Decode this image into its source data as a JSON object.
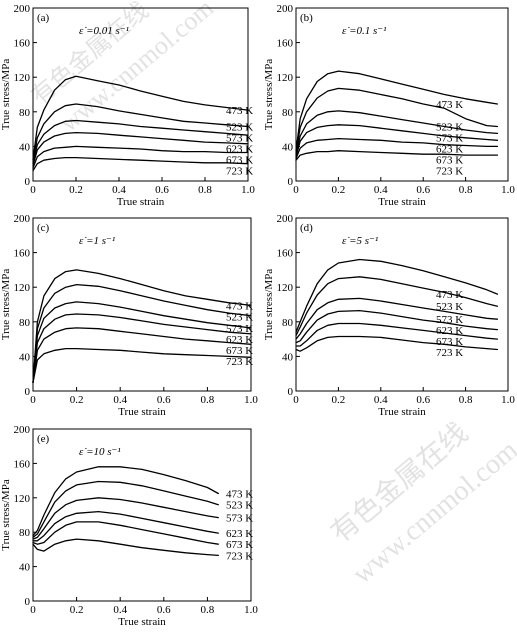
{
  "watermark": {
    "cn": "有色金属在线",
    "url": "www.cnnmol.com"
  },
  "chart_data": [
    {
      "type": "line",
      "panel_label": "(a)",
      "rate_label": "ε̇ =0.01 s⁻¹",
      "xlabel": "True strain",
      "ylabel": "True stress/MPa",
      "xlim": [
        0,
        1.0
      ],
      "ylim": [
        0,
        200
      ],
      "xticks": [
        "0",
        "0.2",
        "0.4",
        "0.6",
        "0.8",
        "1.0"
      ],
      "yticks": [
        "0",
        "40",
        "80",
        "120",
        "160",
        "200"
      ],
      "grid": false,
      "series": [
        {
          "name": "473 K",
          "x": [
            0,
            0.02,
            0.05,
            0.1,
            0.15,
            0.2,
            0.3,
            0.4,
            0.5,
            0.6,
            0.7,
            0.8,
            0.9,
            1.0
          ],
          "y": [
            25,
            62,
            82,
            105,
            117,
            121,
            116,
            111,
            104,
            98,
            92,
            88,
            85,
            82
          ]
        },
        {
          "name": "523 K",
          "x": [
            0,
            0.02,
            0.05,
            0.1,
            0.15,
            0.2,
            0.3,
            0.4,
            0.5,
            0.6,
            0.7,
            0.8,
            0.9,
            1.0
          ],
          "y": [
            22,
            50,
            66,
            80,
            87,
            89,
            86,
            81,
            77,
            73,
            69,
            67,
            65,
            63
          ]
        },
        {
          "name": "573 K",
          "x": [
            0,
            0.02,
            0.05,
            0.1,
            0.15,
            0.2,
            0.3,
            0.4,
            0.5,
            0.6,
            0.7,
            0.8,
            0.9,
            1.0
          ],
          "y": [
            20,
            42,
            54,
            64,
            69,
            70,
            68,
            66,
            63,
            61,
            59,
            57,
            55,
            53
          ]
        },
        {
          "name": "623 K",
          "x": [
            0,
            0.02,
            0.05,
            0.1,
            0.15,
            0.2,
            0.3,
            0.4,
            0.5,
            0.6,
            0.7,
            0.8,
            0.9,
            1.0
          ],
          "y": [
            18,
            36,
            45,
            52,
            55,
            56,
            55,
            53,
            51,
            49,
            47,
            45,
            44,
            43
          ]
        },
        {
          "name": "673 K",
          "x": [
            0,
            0.02,
            0.05,
            0.1,
            0.15,
            0.2,
            0.3,
            0.4,
            0.5,
            0.6,
            0.7,
            0.8,
            0.9,
            1.0
          ],
          "y": [
            15,
            28,
            34,
            38,
            39,
            40,
            39,
            38,
            37,
            35,
            34,
            34,
            33,
            33
          ]
        },
        {
          "name": "723 K",
          "x": [
            0,
            0.02,
            0.05,
            0.1,
            0.15,
            0.2,
            0.3,
            0.4,
            0.5,
            0.6,
            0.7,
            0.8,
            0.9,
            1.0
          ],
          "y": [
            12,
            20,
            24,
            26,
            27,
            27,
            26,
            25,
            24,
            23,
            22,
            21,
            21,
            20
          ]
        }
      ]
    },
    {
      "type": "line",
      "panel_label": "(b)",
      "rate_label": "ε̇ =0.1 s⁻¹",
      "xlabel": "True strain",
      "ylabel": "True stress/MPa",
      "xlim": [
        0,
        1.0
      ],
      "ylim": [
        0,
        200
      ],
      "xticks": [
        "0",
        "0.2",
        "0.4",
        "0.6",
        "0.8",
        "1.0"
      ],
      "yticks": [
        "0",
        "40",
        "80",
        "120",
        "160",
        "200"
      ],
      "grid": false,
      "series": [
        {
          "name": "473 K",
          "x": [
            0,
            0.02,
            0.05,
            0.1,
            0.15,
            0.2,
            0.3,
            0.4,
            0.5,
            0.6,
            0.7,
            0.8,
            0.9,
            0.95
          ],
          "y": [
            35,
            72,
            95,
            115,
            124,
            127,
            124,
            118,
            112,
            106,
            100,
            95,
            91,
            89
          ]
        },
        {
          "name": "523 K",
          "x": [
            0,
            0.02,
            0.05,
            0.1,
            0.15,
            0.2,
            0.3,
            0.4,
            0.5,
            0.6,
            0.7,
            0.8,
            0.9,
            0.95
          ],
          "y": [
            32,
            62,
            80,
            96,
            104,
            107,
            105,
            100,
            95,
            89,
            84,
            72,
            64,
            63
          ]
        },
        {
          "name": "573 K",
          "x": [
            0,
            0.02,
            0.05,
            0.1,
            0.15,
            0.2,
            0.3,
            0.4,
            0.5,
            0.6,
            0.7,
            0.8,
            0.9,
            0.95
          ],
          "y": [
            30,
            52,
            66,
            76,
            80,
            81,
            79,
            75,
            71,
            67,
            63,
            59,
            56,
            55
          ]
        },
        {
          "name": "623 K",
          "x": [
            0,
            0.02,
            0.05,
            0.1,
            0.15,
            0.2,
            0.3,
            0.4,
            0.5,
            0.6,
            0.7,
            0.8,
            0.9,
            0.95
          ],
          "y": [
            28,
            46,
            56,
            62,
            64,
            65,
            64,
            61,
            58,
            55,
            52,
            50,
            48,
            47
          ]
        },
        {
          "name": "673 K",
          "x": [
            0,
            0.02,
            0.05,
            0.1,
            0.15,
            0.2,
            0.3,
            0.4,
            0.5,
            0.6,
            0.7,
            0.8,
            0.9,
            0.95
          ],
          "y": [
            26,
            38,
            44,
            47,
            48,
            49,
            48,
            47,
            45,
            44,
            42,
            41,
            40,
            40
          ]
        },
        {
          "name": "723 K",
          "x": [
            0,
            0.02,
            0.05,
            0.1,
            0.15,
            0.2,
            0.3,
            0.4,
            0.5,
            0.6,
            0.7,
            0.8,
            0.9,
            0.95
          ],
          "y": [
            24,
            30,
            32,
            34,
            34,
            35,
            34,
            33,
            32,
            31,
            31,
            30,
            30,
            30
          ]
        }
      ]
    },
    {
      "type": "line",
      "panel_label": "(c)",
      "rate_label": "ε̇ =1 s⁻¹",
      "xlabel": "True strain",
      "ylabel": "True stress/MPa",
      "xlim": [
        0,
        1.0
      ],
      "ylim": [
        0,
        200
      ],
      "xticks": [
        "0",
        "0.2",
        "0.4",
        "0.6",
        "0.8",
        "1.0"
      ],
      "yticks": [
        "0",
        "40",
        "80",
        "120",
        "160",
        "200"
      ],
      "grid": false,
      "series": [
        {
          "name": "473 K",
          "x": [
            0,
            0.02,
            0.05,
            0.1,
            0.15,
            0.2,
            0.3,
            0.4,
            0.5,
            0.6,
            0.7,
            0.8,
            0.9,
            1.0
          ],
          "y": [
            10,
            80,
            110,
            130,
            138,
            140,
            136,
            130,
            123,
            116,
            110,
            106,
            102,
            99
          ]
        },
        {
          "name": "523 K",
          "x": [
            0,
            0.02,
            0.05,
            0.1,
            0.15,
            0.2,
            0.3,
            0.4,
            0.5,
            0.6,
            0.7,
            0.8,
            0.9,
            1.0
          ],
          "y": [
            10,
            72,
            96,
            113,
            120,
            123,
            121,
            116,
            110,
            104,
            99,
            94,
            90,
            87
          ]
        },
        {
          "name": "573 K",
          "x": [
            0,
            0.02,
            0.05,
            0.1,
            0.15,
            0.2,
            0.3,
            0.4,
            0.5,
            0.6,
            0.7,
            0.8,
            0.9,
            1.0
          ],
          "y": [
            10,
            64,
            84,
            96,
            101,
            103,
            101,
            97,
            92,
            87,
            83,
            79,
            76,
            73
          ]
        },
        {
          "name": "623 K",
          "x": [
            0,
            0.02,
            0.05,
            0.1,
            0.15,
            0.2,
            0.3,
            0.4,
            0.5,
            0.6,
            0.7,
            0.8,
            0.9,
            1.0
          ],
          "y": [
            10,
            56,
            72,
            83,
            88,
            89,
            88,
            85,
            81,
            77,
            74,
            71,
            68,
            66
          ]
        },
        {
          "name": "673 K",
          "x": [
            0,
            0.02,
            0.05,
            0.1,
            0.15,
            0.2,
            0.3,
            0.4,
            0.5,
            0.6,
            0.7,
            0.8,
            0.9,
            1.0
          ],
          "y": [
            10,
            47,
            60,
            68,
            72,
            73,
            72,
            69,
            66,
            63,
            60,
            58,
            56,
            54
          ]
        },
        {
          "name": "723 K",
          "x": [
            0,
            0.02,
            0.05,
            0.1,
            0.15,
            0.2,
            0.3,
            0.4,
            0.5,
            0.6,
            0.7,
            0.8,
            0.9,
            1.0
          ],
          "y": [
            10,
            36,
            43,
            47,
            49,
            49,
            48,
            47,
            45,
            43,
            42,
            41,
            40,
            39
          ]
        }
      ]
    },
    {
      "type": "line",
      "panel_label": "(d)",
      "rate_label": "ε̇ =5 s⁻¹",
      "xlabel": "True strain",
      "ylabel": "True stress/MPa",
      "xlim": [
        0,
        1.0
      ],
      "ylim": [
        0,
        200
      ],
      "xticks": [
        "0",
        "0.2",
        "0.4",
        "0.6",
        "0.8",
        "1.0"
      ],
      "yticks": [
        "0",
        "40",
        "80",
        "120",
        "160",
        "200"
      ],
      "grid": false,
      "series": [
        {
          "name": "473 K",
          "x": [
            0,
            0.02,
            0.05,
            0.1,
            0.15,
            0.2,
            0.3,
            0.4,
            0.5,
            0.6,
            0.7,
            0.8,
            0.9,
            0.95
          ],
          "y": [
            68,
            80,
            98,
            124,
            140,
            148,
            152,
            150,
            145,
            139,
            132,
            125,
            117,
            112
          ]
        },
        {
          "name": "523 K",
          "x": [
            0,
            0.02,
            0.05,
            0.1,
            0.15,
            0.2,
            0.3,
            0.4,
            0.5,
            0.6,
            0.7,
            0.8,
            0.9,
            0.95
          ],
          "y": [
            64,
            74,
            90,
            111,
            124,
            130,
            132,
            129,
            124,
            119,
            114,
            108,
            101,
            98
          ]
        },
        {
          "name": "573 K",
          "x": [
            0,
            0.02,
            0.05,
            0.1,
            0.15,
            0.2,
            0.3,
            0.4,
            0.5,
            0.6,
            0.7,
            0.8,
            0.9,
            0.95
          ],
          "y": [
            60,
            66,
            78,
            94,
            102,
            106,
            107,
            104,
            100,
            96,
            92,
            88,
            84,
            83
          ]
        },
        {
          "name": "623 K",
          "x": [
            0,
            0.02,
            0.05,
            0.1,
            0.15,
            0.2,
            0.3,
            0.4,
            0.5,
            0.6,
            0.7,
            0.8,
            0.9,
            0.95
          ],
          "y": [
            56,
            58,
            68,
            82,
            89,
            92,
            93,
            90,
            86,
            82,
            79,
            75,
            72,
            71
          ]
        },
        {
          "name": "673 K",
          "x": [
            0,
            0.02,
            0.05,
            0.1,
            0.15,
            0.2,
            0.3,
            0.4,
            0.5,
            0.6,
            0.7,
            0.8,
            0.9,
            0.95
          ],
          "y": [
            52,
            52,
            58,
            70,
            76,
            78,
            78,
            76,
            73,
            70,
            67,
            64,
            61,
            60
          ]
        },
        {
          "name": "723 K",
          "x": [
            0,
            0.02,
            0.05,
            0.1,
            0.15,
            0.2,
            0.3,
            0.4,
            0.5,
            0.6,
            0.7,
            0.8,
            0.9,
            0.95
          ],
          "y": [
            48,
            46,
            50,
            58,
            62,
            63,
            63,
            62,
            59,
            56,
            54,
            51,
            49,
            48
          ]
        }
      ]
    },
    {
      "type": "line",
      "panel_label": "(e)",
      "rate_label": "ε̇ =10 s⁻¹",
      "xlabel": "True strain",
      "ylabel": "True stress/MPa",
      "xlim": [
        0,
        1.0
      ],
      "ylim": [
        0,
        200
      ],
      "xticks": [
        "0",
        "0.2",
        "0.4",
        "0.6",
        "0.8",
        "1.0"
      ],
      "yticks": [
        "0",
        "40",
        "80",
        "120",
        "160",
        "200"
      ],
      "grid": false,
      "series": [
        {
          "name": "473 K",
          "x": [
            0,
            0.02,
            0.05,
            0.1,
            0.15,
            0.2,
            0.3,
            0.4,
            0.5,
            0.6,
            0.7,
            0.8,
            0.85
          ],
          "y": [
            76,
            82,
            100,
            126,
            142,
            150,
            156,
            156,
            153,
            147,
            140,
            132,
            125
          ]
        },
        {
          "name": "523 K",
          "x": [
            0,
            0.02,
            0.05,
            0.1,
            0.15,
            0.2,
            0.3,
            0.4,
            0.5,
            0.6,
            0.7,
            0.8,
            0.85
          ],
          "y": [
            74,
            78,
            92,
            115,
            128,
            135,
            139,
            138,
            134,
            128,
            122,
            116,
            112
          ]
        },
        {
          "name": "573 K",
          "x": [
            0,
            0.02,
            0.05,
            0.1,
            0.15,
            0.2,
            0.3,
            0.4,
            0.5,
            0.6,
            0.7,
            0.8,
            0.85
          ],
          "y": [
            72,
            74,
            84,
            102,
            112,
            117,
            120,
            118,
            114,
            109,
            104,
            99,
            97
          ]
        },
        {
          "name": "623 K",
          "x": [
            0,
            0.02,
            0.05,
            0.1,
            0.15,
            0.2,
            0.3,
            0.4,
            0.5,
            0.6,
            0.7,
            0.8,
            0.85
          ],
          "y": [
            70,
            70,
            76,
            90,
            98,
            102,
            104,
            101,
            96,
            91,
            86,
            81,
            79
          ]
        },
        {
          "name": "673 K",
          "x": [
            0,
            0.02,
            0.05,
            0.1,
            0.15,
            0.2,
            0.3,
            0.4,
            0.5,
            0.6,
            0.7,
            0.8,
            0.85
          ],
          "y": [
            68,
            66,
            68,
            80,
            88,
            92,
            92,
            88,
            83,
            78,
            73,
            68,
            66
          ]
        },
        {
          "name": "723 K",
          "x": [
            0,
            0.02,
            0.05,
            0.1,
            0.15,
            0.2,
            0.3,
            0.4,
            0.5,
            0.6,
            0.7,
            0.8,
            0.85
          ],
          "y": [
            66,
            60,
            58,
            66,
            70,
            72,
            70,
            66,
            62,
            59,
            56,
            54,
            53
          ]
        }
      ]
    }
  ]
}
